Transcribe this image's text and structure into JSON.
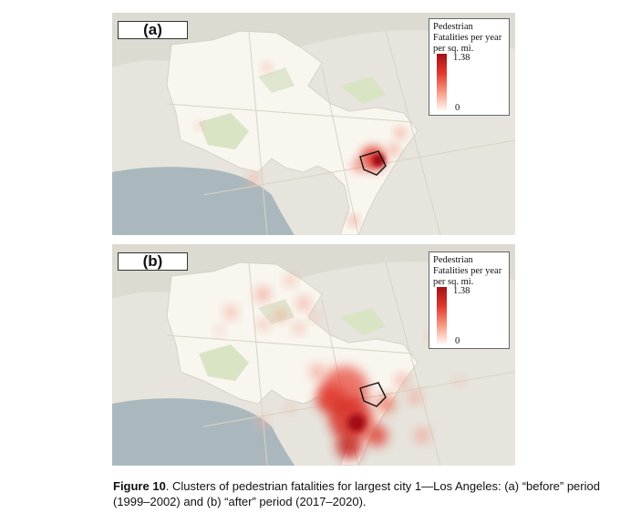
{
  "figure": {
    "caption_label": "Figure 10",
    "caption_text": ". Clusters of pedestrian fatalities for largest city 1—Los Angeles: (a) “before” period (1999–2002) and (b) “after” period (2017–2020)."
  },
  "panels": [
    {
      "label": "(a)",
      "legend": {
        "title": "Pedestrian Fatalities per year per sq. mi.",
        "max": "1.38",
        "min": "0"
      }
    },
    {
      "label": "(b)",
      "legend": {
        "title": "Pedestrian Fatalities per year per sq. mi.",
        "max": "1.38",
        "min": "0"
      }
    }
  ],
  "colors": {
    "ocean": "#aab8bd",
    "land": "#ebe9e3",
    "city": "#f8f6ef",
    "park": "#d9e4c4",
    "heat_high": "#a50f15",
    "heat_mid": "#e03b2e",
    "heat_low": "#fbd0c4"
  }
}
